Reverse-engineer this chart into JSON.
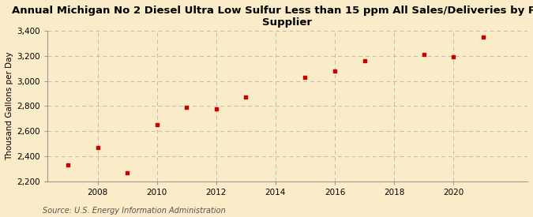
{
  "title": "Annual Michigan No 2 Diesel Ultra Low Sulfur Less than 15 ppm All Sales/Deliveries by Prime\nSupplier",
  "ylabel": "Thousand Gallons per Day",
  "source": "Source: U.S. Energy Information Administration",
  "background_color": "#faecc8",
  "plot_bg_color": "#faecc8",
  "marker_color": "#cc0000",
  "grid_color": "#bbbbbb",
  "years": [
    2007,
    2008,
    2009,
    2010,
    2011,
    2012,
    2013,
    2015,
    2016,
    2017,
    2019,
    2020,
    2021
  ],
  "values": [
    2330,
    2470,
    2270,
    2650,
    2790,
    2775,
    2870,
    3030,
    3080,
    3160,
    3210,
    3190,
    3350
  ],
  "ylim": [
    2200,
    3400
  ],
  "yticks": [
    2200,
    2400,
    2600,
    2800,
    3000,
    3200,
    3400
  ],
  "xticks": [
    2008,
    2010,
    2012,
    2014,
    2016,
    2018,
    2020
  ],
  "xlim": [
    2006.3,
    2022.5
  ],
  "title_fontsize": 9.5,
  "label_fontsize": 7.5,
  "tick_fontsize": 7.5,
  "source_fontsize": 7
}
